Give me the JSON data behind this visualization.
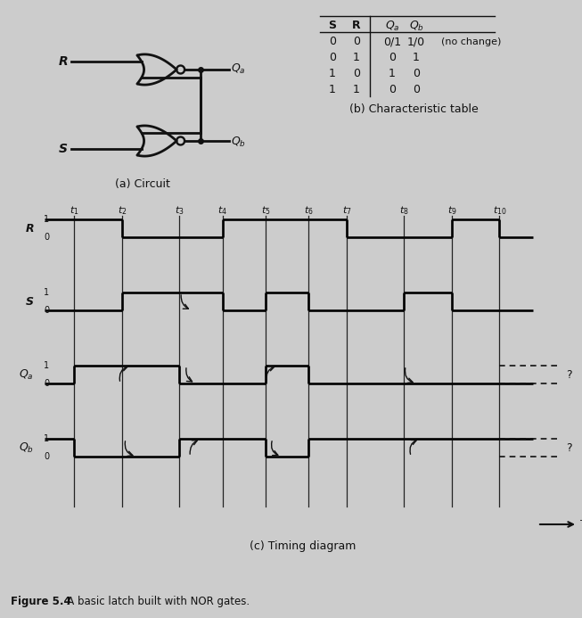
{
  "bg_color": "#cccccc",
  "circuit_label": "(a) Circuit",
  "table_label": "(b) Characteristic table",
  "timing_label": "(c) Timing diagram",
  "fig_caption_bold": "Figure 5.4",
  "fig_caption_rest": "   A basic latch built with NOR gates.",
  "table_headers": [
    "S",
    "R",
    "Qa",
    "Qb"
  ],
  "table_rows": [
    [
      "0",
      "0",
      "0/1",
      "1/0",
      "(no change)"
    ],
    [
      "0",
      "1",
      "0",
      "1",
      ""
    ],
    [
      "1",
      "0",
      "1",
      "0",
      ""
    ],
    [
      "1",
      "1",
      "0",
      "0",
      ""
    ]
  ],
  "time_labels": [
    "t_1",
    "t_2",
    "t_3",
    "t_4",
    "t_5",
    "t_6",
    "t_7",
    "t_8",
    "t_9",
    "t_{10}"
  ],
  "R_vals": [
    1,
    1,
    0,
    0,
    1,
    1,
    1,
    0,
    0,
    1,
    0
  ],
  "S_vals": [
    0,
    0,
    1,
    1,
    0,
    1,
    0,
    0,
    1,
    0,
    0
  ],
  "Qa_vals": [
    0,
    1,
    1,
    0,
    0,
    1,
    0,
    0,
    0,
    0,
    0
  ],
  "Qb_vals": [
    1,
    0,
    0,
    1,
    1,
    0,
    1,
    1,
    1,
    1,
    1
  ]
}
